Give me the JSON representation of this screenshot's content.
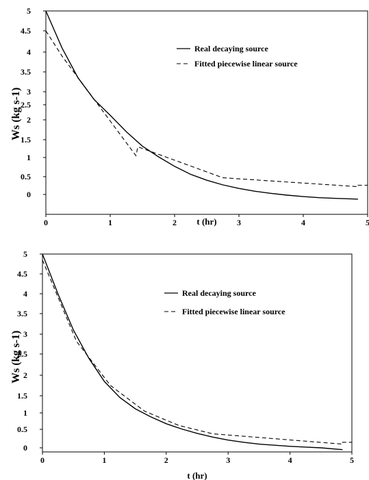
{
  "chart_data": [
    {
      "type": "line",
      "xlabel": "t (hr)",
      "ylabel": "Ws (kg s-1)",
      "xlim": [
        0,
        5
      ],
      "x_ticks": [
        "0",
        "1",
        "2",
        "3",
        "4",
        "5"
      ],
      "y_ticks": [
        "0",
        "0.5",
        "1",
        "1.5",
        "2",
        "2.5",
        "3",
        "3.5",
        "4",
        "4.5",
        "5"
      ],
      "legend_position": "top-right",
      "series": [
        {
          "name": "Real decaying source",
          "style": "solid",
          "x": [
            0,
            0.25,
            0.5,
            0.75,
            1.0,
            1.25,
            1.5,
            1.75,
            2.0,
            2.25,
            2.5,
            2.75,
            3.0,
            3.25,
            3.5,
            3.75,
            4.0,
            4.25,
            4.5,
            4.85
          ],
          "y": [
            5.0,
            4.1,
            3.35,
            2.7,
            2.15,
            1.7,
            1.32,
            1.02,
            0.77,
            0.56,
            0.4,
            0.27,
            0.17,
            0.09,
            0.03,
            -0.02,
            -0.06,
            -0.09,
            -0.11,
            -0.13
          ]
        },
        {
          "name": "Fitted piecewise linear source",
          "style": "dashed",
          "x": [
            0,
            0.25,
            1.4,
            1.43,
            2.75,
            4.85,
            4.85,
            5.0
          ],
          "y": [
            4.5,
            3.9,
            1.05,
            1.3,
            0.47,
            0.22,
            0.26,
            0.26
          ]
        }
      ]
    },
    {
      "type": "line",
      "xlabel": "t (hr)",
      "ylabel": "Ws (kg s-1)",
      "xlim": [
        0,
        5
      ],
      "x_ticks": [
        "0",
        "1",
        "2",
        "3",
        "4",
        "5"
      ],
      "y_ticks": [
        "0",
        "0.5",
        "1",
        "1.5",
        "2",
        "2.5",
        "3",
        "3.5",
        "4",
        "4.5",
        "5"
      ],
      "legend_position": "top-right",
      "series": [
        {
          "name": "Real decaying source",
          "style": "solid",
          "x": [
            0,
            0.25,
            0.5,
            0.75,
            1.0,
            1.25,
            1.5,
            1.75,
            2.0,
            2.25,
            2.5,
            2.75,
            3.0,
            3.25,
            3.5,
            3.75,
            4.0,
            4.25,
            4.5,
            4.85
          ],
          "y": [
            5.0,
            4.0,
            3.1,
            2.4,
            1.85,
            1.45,
            1.12,
            0.88,
            0.67,
            0.51,
            0.39,
            0.29,
            0.21,
            0.15,
            0.1,
            0.07,
            0.04,
            0.02,
            0.0,
            -0.05
          ]
        },
        {
          "name": "Fitted piecewise linear source",
          "style": "dashed",
          "x": [
            0,
            0.55,
            1.1,
            1.65,
            2.2,
            2.75,
            4.85,
            4.85,
            5.0
          ],
          "y": [
            4.85,
            2.82,
            1.75,
            1.05,
            0.62,
            0.38,
            0.1,
            0.15,
            0.15
          ]
        }
      ]
    }
  ]
}
